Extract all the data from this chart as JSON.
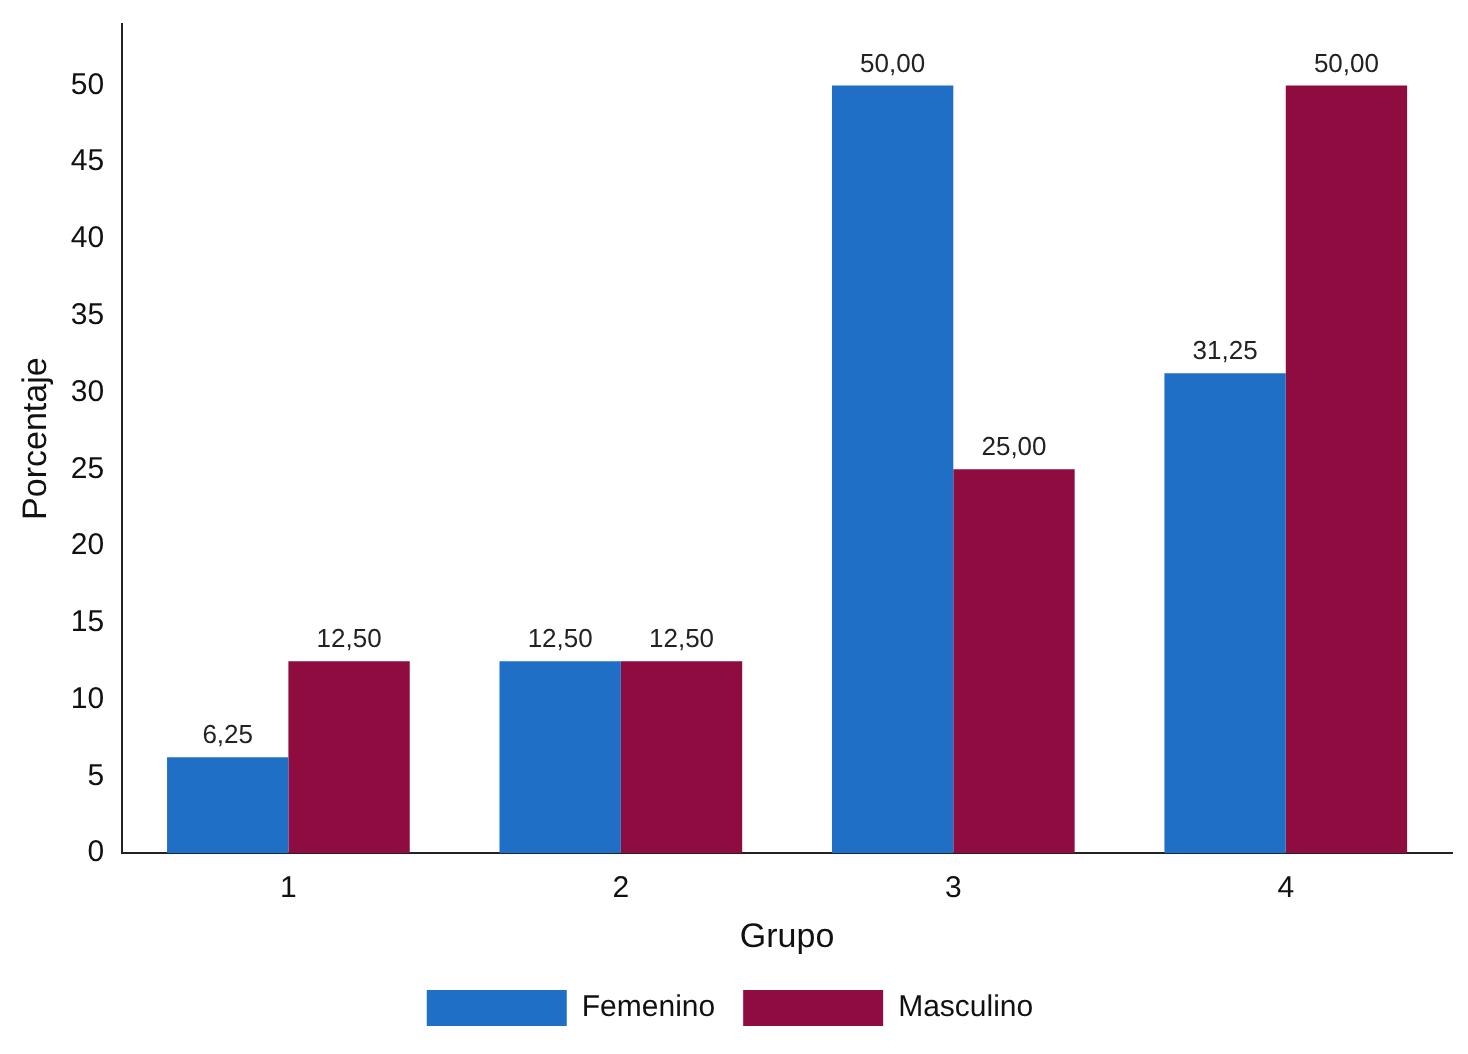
{
  "chart_data": {
    "type": "bar",
    "xlabel": "Grupo",
    "ylabel": "Porcentaje",
    "categories": [
      "1",
      "2",
      "3",
      "4"
    ],
    "series": [
      {
        "name": "Femenino",
        "color": "#1f6fc6",
        "values": [
          6.25,
          12.5,
          50,
          31.25
        ],
        "value_labels": [
          "6,25",
          "12,50",
          "50,00",
          "31,25"
        ]
      },
      {
        "name": "Masculino",
        "color": "#8e0c40",
        "values": [
          12.5,
          12.5,
          25,
          50
        ],
        "value_labels": [
          "12,50",
          "12,50",
          "25,00",
          "50,00"
        ]
      }
    ],
    "ylim": [
      0,
      54
    ],
    "yticks": [
      0,
      5,
      10,
      15,
      20,
      25,
      30,
      35,
      40,
      45,
      50
    ],
    "grid": false,
    "legend": "bottom"
  }
}
